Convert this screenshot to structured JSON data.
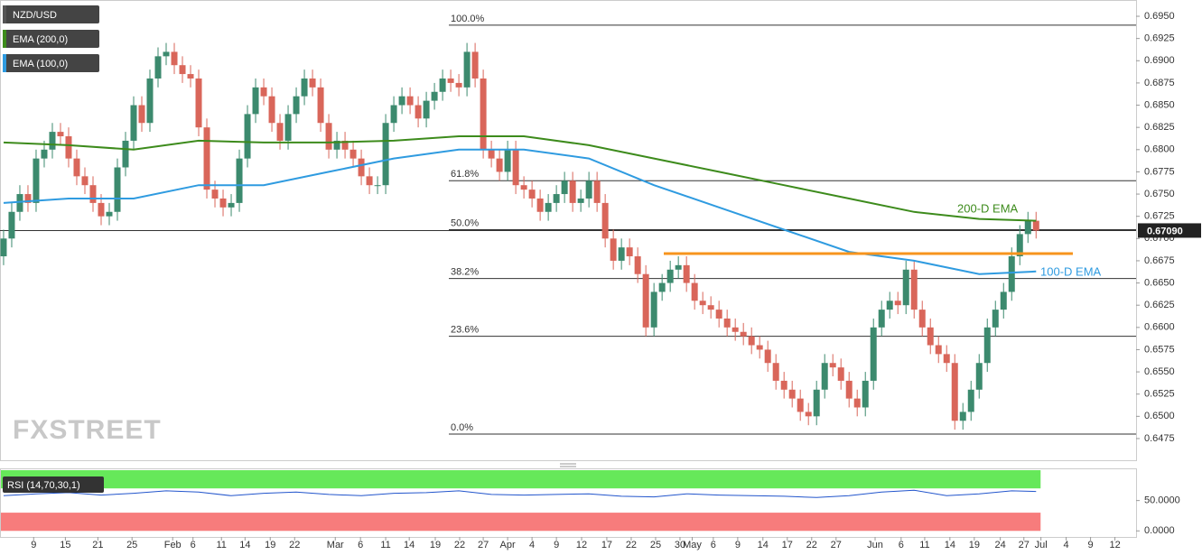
{
  "chart_data": {
    "type": "candlestick",
    "title": "NZD/USD",
    "watermark": "FXSTREET",
    "up_color": "#3c8a6e",
    "down_color": "#d9665a",
    "xlim": [
      -0.44,
      139.3
    ],
    "ylim": [
      0.64506,
      0.69683
    ],
    "xticks": [
      {
        "value": 3.7,
        "label": "9"
      },
      {
        "value": 7.6,
        "label": "15"
      },
      {
        "value": 11.6,
        "label": "21"
      },
      {
        "value": 15.8,
        "label": "25"
      },
      {
        "value": 20.8,
        "label": "Feb"
      },
      {
        "value": 23.3,
        "label": "6"
      },
      {
        "value": 26.8,
        "label": "11"
      },
      {
        "value": 29.7,
        "label": "14"
      },
      {
        "value": 32.8,
        "label": "19"
      },
      {
        "value": 35.8,
        "label": "22"
      },
      {
        "value": 40.8,
        "label": "Mar"
      },
      {
        "value": 43.9,
        "label": "6"
      },
      {
        "value": 47,
        "label": "11"
      },
      {
        "value": 49.9,
        "label": "14"
      },
      {
        "value": 53.1,
        "label": "19"
      },
      {
        "value": 56.1,
        "label": "22"
      },
      {
        "value": 59,
        "label": "27"
      },
      {
        "value": 62,
        "label": "Apr"
      },
      {
        "value": 65,
        "label": "4"
      },
      {
        "value": 68,
        "label": "9"
      },
      {
        "value": 71.1,
        "label": "12"
      },
      {
        "value": 74.2,
        "label": "17"
      },
      {
        "value": 77.2,
        "label": "22"
      },
      {
        "value": 80.2,
        "label": "25"
      },
      {
        "value": 83.2,
        "label": "30"
      },
      {
        "value": 84.7,
        "label": "May"
      },
      {
        "value": 87.3,
        "label": "6"
      },
      {
        "value": 90.3,
        "label": "9"
      },
      {
        "value": 93.4,
        "label": "14"
      },
      {
        "value": 96.4,
        "label": "17"
      },
      {
        "value": 99.4,
        "label": "22"
      },
      {
        "value": 102.4,
        "label": "27"
      },
      {
        "value": 107.2,
        "label": "Jun"
      },
      {
        "value": 110.4,
        "label": "6"
      },
      {
        "value": 113.3,
        "label": "11"
      },
      {
        "value": 116.4,
        "label": "14"
      },
      {
        "value": 119.4,
        "label": "19"
      },
      {
        "value": 122.6,
        "label": "24"
      },
      {
        "value": 125.5,
        "label": "27"
      },
      {
        "value": 127.6,
        "label": "Jul"
      },
      {
        "value": 130.7,
        "label": "4"
      },
      {
        "value": 133.7,
        "label": "9"
      },
      {
        "value": 136.7,
        "label": "12"
      }
    ],
    "yticks": [
      {
        "value": 0.6475,
        "label": "0.6475"
      },
      {
        "value": 0.65,
        "label": "0.6500"
      },
      {
        "value": 0.6525,
        "label": "0.6525"
      },
      {
        "value": 0.655,
        "label": "0.6550"
      },
      {
        "value": 0.6575,
        "label": "0.6575"
      },
      {
        "value": 0.66,
        "label": "0.6600"
      },
      {
        "value": 0.6625,
        "label": "0.6625"
      },
      {
        "value": 0.665,
        "label": "0.6650"
      },
      {
        "value": 0.6675,
        "label": "0.6675"
      },
      {
        "value": 0.67,
        "label": "0.6700"
      },
      {
        "value": 0.6725,
        "label": "0.6725"
      },
      {
        "value": 0.675,
        "label": "0.6750"
      },
      {
        "value": 0.6775,
        "label": "0.6775"
      },
      {
        "value": 0.68,
        "label": "0.6800"
      },
      {
        "value": 0.6825,
        "label": "0.6825"
      },
      {
        "value": 0.685,
        "label": "0.6850"
      },
      {
        "value": 0.6875,
        "label": "0.6875"
      },
      {
        "value": 0.69,
        "label": "0.6900"
      },
      {
        "value": 0.6925,
        "label": "0.6925"
      },
      {
        "value": 0.695,
        "label": "0.6950"
      }
    ],
    "open": [
      0.668,
      0.67,
      0.673,
      0.675,
      0.674,
      0.679,
      0.68,
      0.682,
      0.6815,
      0.679,
      0.677,
      0.676,
      0.674,
      0.6725,
      0.673,
      0.678,
      0.681,
      0.685,
      0.683,
      0.688,
      0.6905,
      0.691,
      0.6895,
      0.6885,
      0.688,
      0.6825,
      0.6755,
      0.6745,
      0.6735,
      0.674,
      0.679,
      0.684,
      0.687,
      0.686,
      0.683,
      0.681,
      0.684,
      0.686,
      0.688,
      0.687,
      0.683,
      0.68,
      0.681,
      0.68,
      0.679,
      0.677,
      0.676,
      0.676,
      0.683,
      0.685,
      0.686,
      0.685,
      0.6835,
      0.6855,
      0.6865,
      0.688,
      0.6875,
      0.687,
      0.691,
      0.688,
      0.68,
      0.679,
      0.6775,
      0.68,
      0.676,
      0.6755,
      0.6745,
      0.673,
      0.674,
      0.675,
      0.6765,
      0.674,
      0.6745,
      0.6765,
      0.674,
      0.67,
      0.6675,
      0.669,
      0.668,
      0.666,
      0.66,
      0.664,
      0.665,
      0.6665,
      0.667,
      0.665,
      0.663,
      0.6625,
      0.662,
      0.661,
      0.66,
      0.6595,
      0.659,
      0.658,
      0.6575,
      0.656,
      0.654,
      0.653,
      0.652,
      0.6505,
      0.65,
      0.653,
      0.656,
      0.6555,
      0.654,
      0.652,
      0.651,
      0.654,
      0.66,
      0.662,
      0.663,
      0.6625,
      0.6665,
      0.662,
      0.66,
      0.658,
      0.657,
      0.656,
      0.6495,
      0.6505,
      0.653,
      0.656,
      0.66,
      0.662,
      0.664,
      0.668,
      0.6705,
      0.672
    ],
    "high": [
      0.671,
      0.674,
      0.676,
      0.676,
      0.68,
      0.681,
      0.683,
      0.683,
      0.6825,
      0.68,
      0.678,
      0.677,
      0.675,
      0.674,
      0.679,
      0.682,
      0.686,
      0.686,
      0.689,
      0.6915,
      0.692,
      0.692,
      0.6905,
      0.6895,
      0.689,
      0.6835,
      0.6765,
      0.6755,
      0.675,
      0.68,
      0.685,
      0.688,
      0.688,
      0.687,
      0.684,
      0.685,
      0.687,
      0.689,
      0.689,
      0.688,
      0.684,
      0.682,
      0.682,
      0.681,
      0.68,
      0.678,
      0.677,
      0.684,
      0.686,
      0.687,
      0.687,
      0.686,
      0.6865,
      0.6875,
      0.689,
      0.689,
      0.6885,
      0.692,
      0.692,
      0.689,
      0.681,
      0.68,
      0.681,
      0.681,
      0.677,
      0.6765,
      0.6755,
      0.675,
      0.676,
      0.6775,
      0.6775,
      0.6755,
      0.6775,
      0.6775,
      0.675,
      0.671,
      0.67,
      0.67,
      0.669,
      0.667,
      0.665,
      0.666,
      0.6675,
      0.668,
      0.668,
      0.666,
      0.664,
      0.6635,
      0.663,
      0.662,
      0.661,
      0.6605,
      0.66,
      0.659,
      0.6585,
      0.657,
      0.655,
      0.654,
      0.653,
      0.6515,
      0.654,
      0.657,
      0.657,
      0.6565,
      0.655,
      0.653,
      0.655,
      0.661,
      0.663,
      0.664,
      0.664,
      0.6675,
      0.6675,
      0.663,
      0.661,
      0.659,
      0.658,
      0.657,
      0.6515,
      0.654,
      0.657,
      0.661,
      0.663,
      0.665,
      0.669,
      0.6715,
      0.673,
      0.673
    ],
    "low": [
      0.667,
      0.669,
      0.672,
      0.673,
      0.673,
      0.678,
      0.679,
      0.6805,
      0.678,
      0.676,
      0.675,
      0.673,
      0.6715,
      0.6715,
      0.672,
      0.677,
      0.68,
      0.682,
      0.682,
      0.687,
      0.6895,
      0.6885,
      0.6875,
      0.687,
      0.6815,
      0.6745,
      0.6735,
      0.6725,
      0.6725,
      0.673,
      0.678,
      0.683,
      0.685,
      0.682,
      0.68,
      0.68,
      0.683,
      0.685,
      0.686,
      0.682,
      0.679,
      0.679,
      0.679,
      0.678,
      0.676,
      0.675,
      0.675,
      0.675,
      0.682,
      0.684,
      0.684,
      0.6825,
      0.6825,
      0.6845,
      0.6855,
      0.6865,
      0.686,
      0.686,
      0.687,
      0.679,
      0.678,
      0.6765,
      0.6765,
      0.675,
      0.6745,
      0.6735,
      0.672,
      0.672,
      0.673,
      0.674,
      0.673,
      0.673,
      0.6735,
      0.673,
      0.669,
      0.6665,
      0.6665,
      0.667,
      0.665,
      0.659,
      0.659,
      0.663,
      0.664,
      0.6655,
      0.664,
      0.662,
      0.6615,
      0.661,
      0.66,
      0.659,
      0.6585,
      0.658,
      0.657,
      0.6565,
      0.655,
      0.653,
      0.652,
      0.651,
      0.6495,
      0.649,
      0.649,
      0.652,
      0.6545,
      0.653,
      0.651,
      0.65,
      0.65,
      0.653,
      0.659,
      0.661,
      0.6615,
      0.6615,
      0.661,
      0.659,
      0.657,
      0.656,
      0.655,
      0.6485,
      0.6485,
      0.6495,
      0.652,
      0.655,
      0.659,
      0.661,
      0.663,
      0.667,
      0.6695,
      0.67
    ],
    "close": [
      0.67,
      0.673,
      0.675,
      0.674,
      0.679,
      0.68,
      0.682,
      0.6815,
      0.679,
      0.677,
      0.676,
      0.674,
      0.6725,
      0.673,
      0.678,
      0.681,
      0.685,
      0.683,
      0.688,
      0.6905,
      0.691,
      0.6895,
      0.6885,
      0.688,
      0.6825,
      0.6755,
      0.6745,
      0.6735,
      0.674,
      0.679,
      0.684,
      0.687,
      0.686,
      0.683,
      0.681,
      0.684,
      0.686,
      0.688,
      0.687,
      0.683,
      0.68,
      0.681,
      0.68,
      0.679,
      0.677,
      0.676,
      0.676,
      0.683,
      0.685,
      0.686,
      0.685,
      0.6835,
      0.6855,
      0.6865,
      0.688,
      0.6875,
      0.687,
      0.691,
      0.688,
      0.68,
      0.679,
      0.6775,
      0.68,
      0.676,
      0.6755,
      0.6745,
      0.673,
      0.674,
      0.675,
      0.6765,
      0.674,
      0.6745,
      0.6765,
      0.674,
      0.67,
      0.6675,
      0.669,
      0.668,
      0.666,
      0.66,
      0.664,
      0.665,
      0.6665,
      0.667,
      0.665,
      0.663,
      0.6625,
      0.662,
      0.661,
      0.66,
      0.6595,
      0.659,
      0.658,
      0.6575,
      0.656,
      0.654,
      0.653,
      0.652,
      0.6505,
      0.65,
      0.653,
      0.656,
      0.6555,
      0.654,
      0.652,
      0.651,
      0.654,
      0.66,
      0.662,
      0.663,
      0.6625,
      0.6665,
      0.662,
      0.66,
      0.658,
      0.657,
      0.656,
      0.6495,
      0.6505,
      0.653,
      0.656,
      0.66,
      0.662,
      0.664,
      0.668,
      0.6705,
      0.672,
      0.6709
    ],
    "series": [
      {
        "name": "EMA (200,0)",
        "color": "#3d8b1c",
        "x": [
          0,
          8,
          16,
          24,
          32,
          40,
          48,
          56,
          64,
          72,
          80,
          88,
          96,
          104,
          112,
          120,
          127
        ],
        "values": [
          0.6808,
          0.6805,
          0.68,
          0.681,
          0.6808,
          0.6808,
          0.681,
          0.6815,
          0.6815,
          0.6805,
          0.679,
          0.6775,
          0.676,
          0.6745,
          0.673,
          0.6722,
          0.672
        ]
      },
      {
        "name": "EMA (100,0)",
        "color": "#2f9be0",
        "x": [
          0,
          8,
          16,
          24,
          32,
          40,
          48,
          56,
          64,
          72,
          80,
          88,
          96,
          104,
          112,
          120,
          127
        ],
        "values": [
          0.674,
          0.6745,
          0.6745,
          0.676,
          0.676,
          0.6775,
          0.679,
          0.68,
          0.68,
          0.679,
          0.676,
          0.6735,
          0.671,
          0.6685,
          0.6675,
          0.666,
          0.6663
        ]
      }
    ],
    "annotations": [
      "200-D EMA",
      "100-D EMA"
    ],
    "fib_levels": [
      {
        "value": 0.694,
        "label": "100.0%"
      },
      {
        "value": 0.6765,
        "label": "61.8%"
      },
      {
        "value": 0.671,
        "label": "50.0%"
      },
      {
        "value": 0.6655,
        "label": "38.2%"
      },
      {
        "value": 0.659,
        "label": "23.6%"
      },
      {
        "value": 0.648,
        "label": "0.0%"
      }
    ],
    "resistance": 0.6683,
    "last_price": {
      "value": 0.6709,
      "label": "0.67090"
    },
    "rsi": {
      "title": "RSI (14,70,30,1)",
      "ylim": [
        -10,
        103
      ],
      "bands": [
        30,
        70
      ],
      "yticks": [
        {
          "value": 50,
          "label": "50.0000"
        },
        {
          "value": 0,
          "label": "0.0000"
        }
      ],
      "color": "#2255cc",
      "x": [
        0,
        4,
        8,
        12,
        16,
        20,
        24,
        28,
        32,
        36,
        40,
        44,
        48,
        52,
        56,
        60,
        64,
        68,
        72,
        76,
        80,
        84,
        88,
        92,
        96,
        100,
        104,
        108,
        112,
        116,
        120,
        124,
        127
      ],
      "values": [
        58,
        61,
        63,
        59,
        62,
        66,
        64,
        58,
        62,
        64,
        60,
        58,
        62,
        63,
        66,
        60,
        59,
        60,
        61,
        57,
        56,
        61,
        59,
        58,
        57,
        55,
        58,
        64,
        67,
        58,
        61,
        66,
        65
      ]
    }
  }
}
